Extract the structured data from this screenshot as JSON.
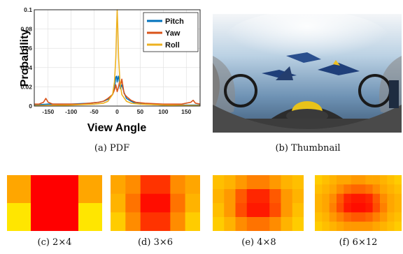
{
  "chart_data": {
    "type": "line",
    "xlabel": "View Angle",
    "ylabel": "Probability",
    "xlim": [
      -180,
      180
    ],
    "ylim": [
      0,
      0.1
    ],
    "xticks": [
      -150,
      -100,
      -50,
      0,
      50,
      100,
      150
    ],
    "yticks": [
      0,
      0.02,
      0.04,
      0.06,
      0.08,
      0.1
    ],
    "ytick_labels": [
      "0",
      "0.02",
      "0.04",
      "0.06",
      "0.08",
      "0.1"
    ],
    "grid": true,
    "legend_position": "top-right",
    "series": [
      {
        "name": "Pitch",
        "color": "#0072bd",
        "x": [
          -180,
          -150,
          -100,
          -60,
          -40,
          -30,
          -20,
          -15,
          -10,
          -7,
          -5,
          -3,
          -1,
          0,
          1,
          3,
          5,
          7,
          10,
          15,
          20,
          30,
          40,
          60,
          100,
          150,
          180
        ],
        "y": [
          0.001,
          0.002,
          0.002,
          0.003,
          0.004,
          0.005,
          0.007,
          0.009,
          0.012,
          0.016,
          0.022,
          0.03,
          0.031,
          0.025,
          0.028,
          0.031,
          0.024,
          0.018,
          0.022,
          0.014,
          0.008,
          0.005,
          0.003,
          0.002,
          0.001,
          0.001,
          0.001
        ]
      },
      {
        "name": "Yaw",
        "color": "#d95319",
        "x": [
          -180,
          -170,
          -160,
          -155,
          -150,
          -140,
          -120,
          -100,
          -80,
          -60,
          -40,
          -30,
          -20,
          -10,
          -5,
          -3,
          0,
          3,
          5,
          8,
          10,
          15,
          20,
          30,
          40,
          60,
          100,
          140,
          160,
          165,
          170,
          180
        ],
        "y": [
          0.002,
          0.002,
          0.004,
          0.008,
          0.004,
          0.002,
          0.002,
          0.002,
          0.002,
          0.003,
          0.004,
          0.005,
          0.008,
          0.012,
          0.018,
          0.022,
          0.015,
          0.02,
          0.025,
          0.023,
          0.028,
          0.013,
          0.01,
          0.006,
          0.004,
          0.003,
          0.002,
          0.002,
          0.004,
          0.006,
          0.003,
          0.002
        ]
      },
      {
        "name": "Roll",
        "color": "#edb120",
        "x": [
          -180,
          -100,
          -50,
          -30,
          -20,
          -10,
          -6,
          -3,
          -1,
          0,
          1,
          3,
          6,
          10,
          20,
          30,
          50,
          100,
          180
        ],
        "y": [
          0.0005,
          0.001,
          0.002,
          0.003,
          0.005,
          0.012,
          0.025,
          0.05,
          0.085,
          0.1,
          0.085,
          0.05,
          0.025,
          0.012,
          0.005,
          0.003,
          0.002,
          0.001,
          0.0005
        ]
      }
    ]
  },
  "heatmaps": [
    {
      "rows": 2,
      "cols": 4,
      "values": [
        [
          0.35,
          1,
          1,
          0.35
        ],
        [
          0.1,
          1,
          1,
          0.1
        ]
      ]
    },
    {
      "rows": 3,
      "cols": 6,
      "values": [
        [
          0.35,
          0.45,
          0.8,
          0.8,
          0.45,
          0.35
        ],
        [
          0.3,
          0.55,
          0.95,
          0.95,
          0.55,
          0.3
        ],
        [
          0.2,
          0.45,
          0.8,
          0.8,
          0.45,
          0.2
        ]
      ]
    },
    {
      "rows": 4,
      "cols": 8,
      "values": [
        [
          0.25,
          0.3,
          0.4,
          0.5,
          0.5,
          0.4,
          0.3,
          0.25
        ],
        [
          0.3,
          0.4,
          0.65,
          0.85,
          0.85,
          0.65,
          0.4,
          0.3
        ],
        [
          0.25,
          0.4,
          0.7,
          0.9,
          0.9,
          0.7,
          0.4,
          0.25
        ],
        [
          0.2,
          0.3,
          0.45,
          0.55,
          0.55,
          0.45,
          0.3,
          0.2
        ]
      ]
    },
    {
      "rows": 6,
      "cols": 12,
      "values": [
        [
          0.2,
          0.25,
          0.3,
          0.35,
          0.35,
          0.4,
          0.4,
          0.35,
          0.35,
          0.3,
          0.25,
          0.2
        ],
        [
          0.25,
          0.3,
          0.35,
          0.45,
          0.55,
          0.6,
          0.6,
          0.55,
          0.45,
          0.35,
          0.3,
          0.25
        ],
        [
          0.3,
          0.35,
          0.45,
          0.65,
          0.85,
          0.9,
          0.9,
          0.85,
          0.65,
          0.45,
          0.35,
          0.3
        ],
        [
          0.3,
          0.35,
          0.5,
          0.7,
          0.9,
          0.95,
          0.95,
          0.9,
          0.7,
          0.5,
          0.35,
          0.3
        ],
        [
          0.25,
          0.3,
          0.4,
          0.5,
          0.6,
          0.65,
          0.65,
          0.6,
          0.5,
          0.4,
          0.3,
          0.25
        ],
        [
          0.2,
          0.25,
          0.3,
          0.35,
          0.4,
          0.4,
          0.4,
          0.4,
          0.35,
          0.3,
          0.25,
          0.2
        ]
      ]
    }
  ],
  "captions": {
    "a": "(a)  PDF",
    "b": "(b)  Thumbnail",
    "c": "(c)  2×4",
    "d": "(d)  3×6",
    "e": "(e)  4×8",
    "f": "(f)  6×12"
  }
}
